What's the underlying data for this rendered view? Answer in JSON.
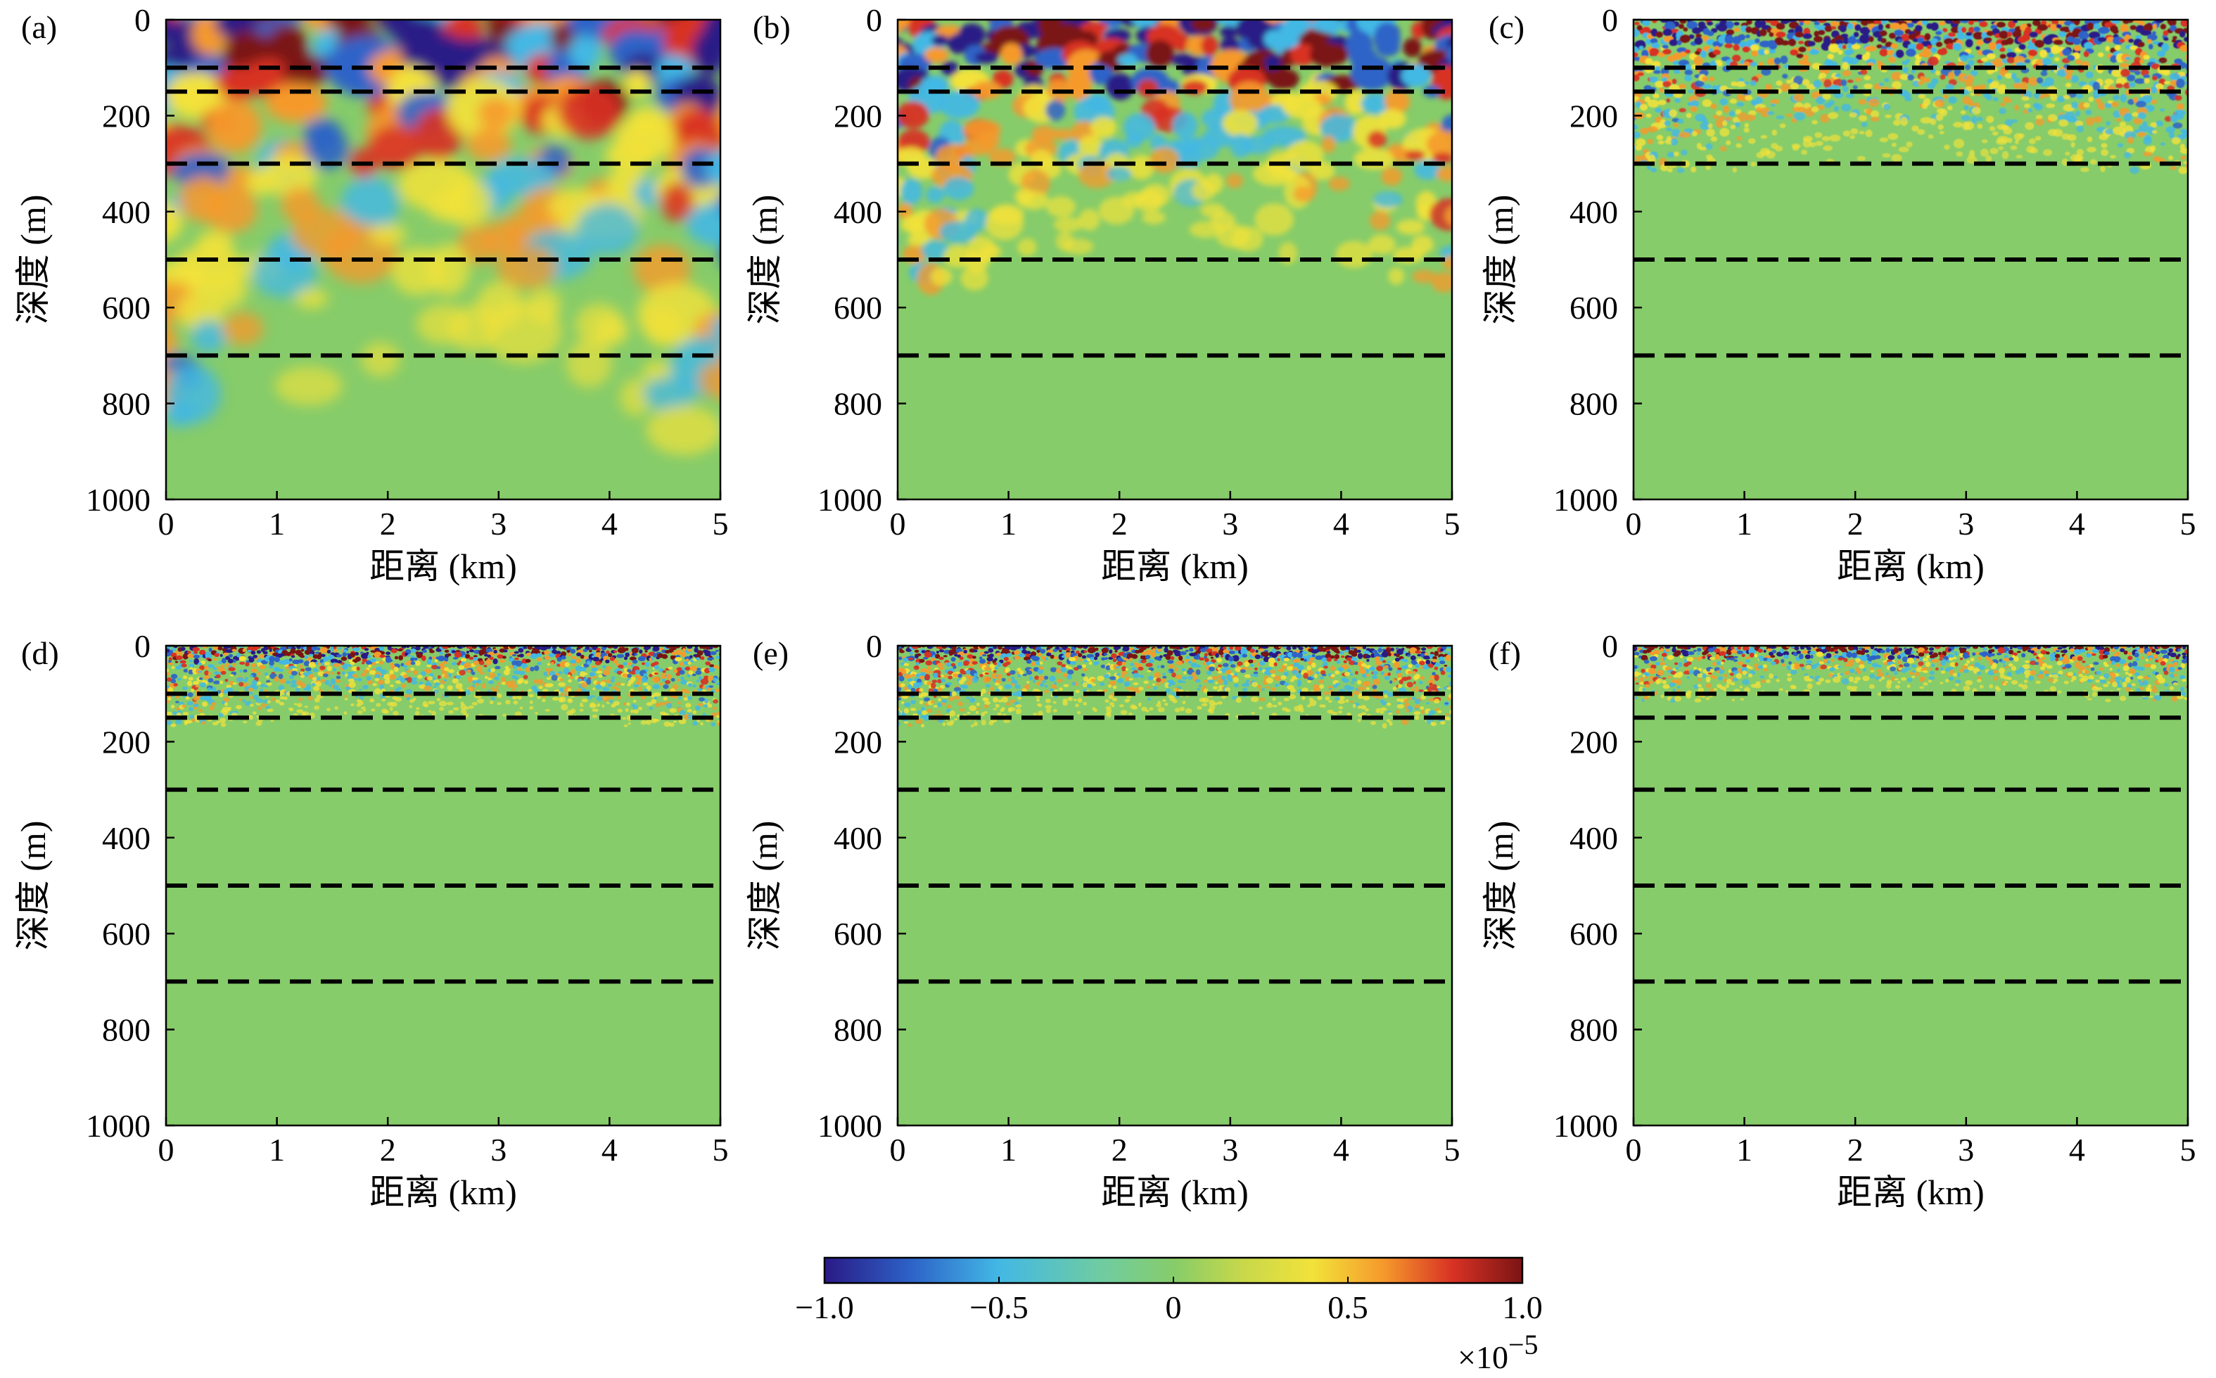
{
  "figure": {
    "colormap": [
      "#2a1a86",
      "#2d63c8",
      "#43b8e4",
      "#7fcf6a",
      "#a8d05a",
      "#f2e23a",
      "#f59a2c",
      "#d83224",
      "#7a1414"
    ],
    "background_field_color": "#86cc6a",
    "dashed_line_color": "#000000"
  },
  "chart_data": [
    {
      "type": "heatmap",
      "panel_label": "(a)",
      "xlabel": "距离 (km)",
      "ylabel": "深度 (m)",
      "xlim": [
        0,
        5
      ],
      "ylim": [
        1000,
        0
      ],
      "xticks": [
        "0",
        "1",
        "2",
        "3",
        "4",
        "5"
      ],
      "yticks": [
        "0",
        "200",
        "400",
        "600",
        "800",
        "1000"
      ],
      "interface_depths_m": [
        100,
        150,
        300,
        500,
        700
      ],
      "dominant_wavefield_depth_m": [
        0,
        750
      ],
      "pattern": "smooth large blobs"
    },
    {
      "type": "heatmap",
      "panel_label": "(b)",
      "xlabel": "距离 (km)",
      "ylabel": "深度 (m)",
      "xlim": [
        0,
        5
      ],
      "ylim": [
        1000,
        0
      ],
      "xticks": [
        "0",
        "1",
        "2",
        "3",
        "4",
        "5"
      ],
      "yticks": [
        "0",
        "200",
        "400",
        "600",
        "800",
        "1000"
      ],
      "interface_depths_m": [
        100,
        150,
        300,
        500,
        700
      ],
      "dominant_wavefield_depth_m": [
        0,
        500
      ],
      "pattern": "medium blobs"
    },
    {
      "type": "heatmap",
      "panel_label": "(c)",
      "xlabel": "距离 (km)",
      "ylabel": "深度 (m)",
      "xlim": [
        0,
        5
      ],
      "ylim": [
        1000,
        0
      ],
      "xticks": [
        "0",
        "1",
        "2",
        "3",
        "4",
        "5"
      ],
      "yticks": [
        "0",
        "200",
        "400",
        "600",
        "800",
        "1000"
      ],
      "interface_depths_m": [
        100,
        150,
        300,
        500,
        700
      ],
      "dominant_wavefield_depth_m": [
        0,
        300
      ],
      "pattern": "fine speckle"
    },
    {
      "type": "heatmap",
      "panel_label": "(d)",
      "xlabel": "距离 (km)",
      "ylabel": "深度 (m)",
      "xlim": [
        0,
        5
      ],
      "ylim": [
        1000,
        0
      ],
      "xticks": [
        "0",
        "1",
        "2",
        "3",
        "4",
        "5"
      ],
      "yticks": [
        "0",
        "200",
        "400",
        "600",
        "800",
        "1000"
      ],
      "interface_depths_m": [
        100,
        150,
        300,
        500,
        700
      ],
      "dominant_wavefield_depth_m": [
        0,
        150
      ],
      "pattern": "fine noise"
    },
    {
      "type": "heatmap",
      "panel_label": "(e)",
      "xlabel": "距离 (km)",
      "ylabel": "深度 (m)",
      "xlim": [
        0,
        5
      ],
      "ylim": [
        1000,
        0
      ],
      "xticks": [
        "0",
        "1",
        "2",
        "3",
        "4",
        "5"
      ],
      "yticks": [
        "0",
        "200",
        "400",
        "600",
        "800",
        "1000"
      ],
      "interface_depths_m": [
        100,
        150,
        300,
        500,
        700
      ],
      "dominant_wavefield_depth_m": [
        0,
        150
      ],
      "pattern": "fine noise"
    },
    {
      "type": "heatmap",
      "panel_label": "(f)",
      "xlabel": "距离 (km)",
      "ylabel": "深度 (m)",
      "xlim": [
        0,
        5
      ],
      "ylim": [
        1000,
        0
      ],
      "xticks": [
        "0",
        "1",
        "2",
        "3",
        "4",
        "5"
      ],
      "yticks": [
        "0",
        "200",
        "400",
        "600",
        "800",
        "1000"
      ],
      "interface_depths_m": [
        100,
        150,
        300,
        500,
        700
      ],
      "dominant_wavefield_depth_m": [
        0,
        100
      ],
      "pattern": "fine noise"
    }
  ],
  "colorbar": {
    "range": [
      -1.0,
      1.0
    ],
    "ticks": [
      "−1.0",
      "−0.5",
      "0",
      "0.5",
      "1.0"
    ],
    "tick_values": [
      -1.0,
      -0.5,
      0,
      0.5,
      1.0
    ],
    "exponent_label": "×10",
    "exponent_power": "−5"
  }
}
